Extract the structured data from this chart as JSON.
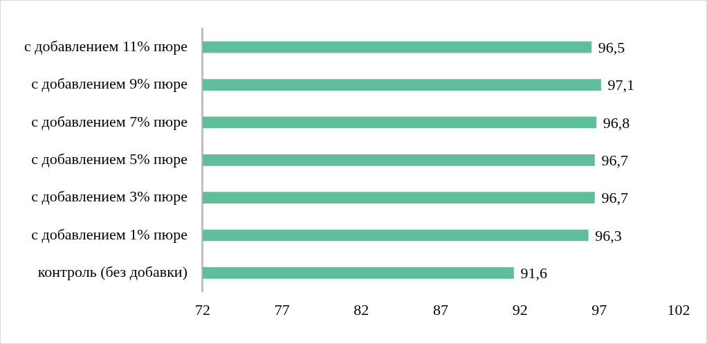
{
  "chart_data": {
    "type": "bar",
    "orientation": "horizontal",
    "categories": [
      "с добавлением 11% пюре",
      "с добавлением 9% пюре",
      "с добавлением 7% пюре",
      "с добавлением 5% пюре",
      "с добавлением 3% пюре",
      "с добавлением 1% пюре",
      "контроль (без добавки)"
    ],
    "values": [
      96.5,
      97.1,
      96.8,
      96.7,
      96.7,
      96.3,
      91.6
    ],
    "value_labels": [
      "96,5",
      "97,1",
      "96,8",
      "96,7",
      "96,7",
      "96,3",
      "91,6"
    ],
    "color": "#5fbf9b",
    "xlim": [
      72,
      102
    ],
    "xticks": [
      72,
      77,
      82,
      87,
      92,
      97,
      102
    ],
    "grid": false,
    "legend": false
  }
}
